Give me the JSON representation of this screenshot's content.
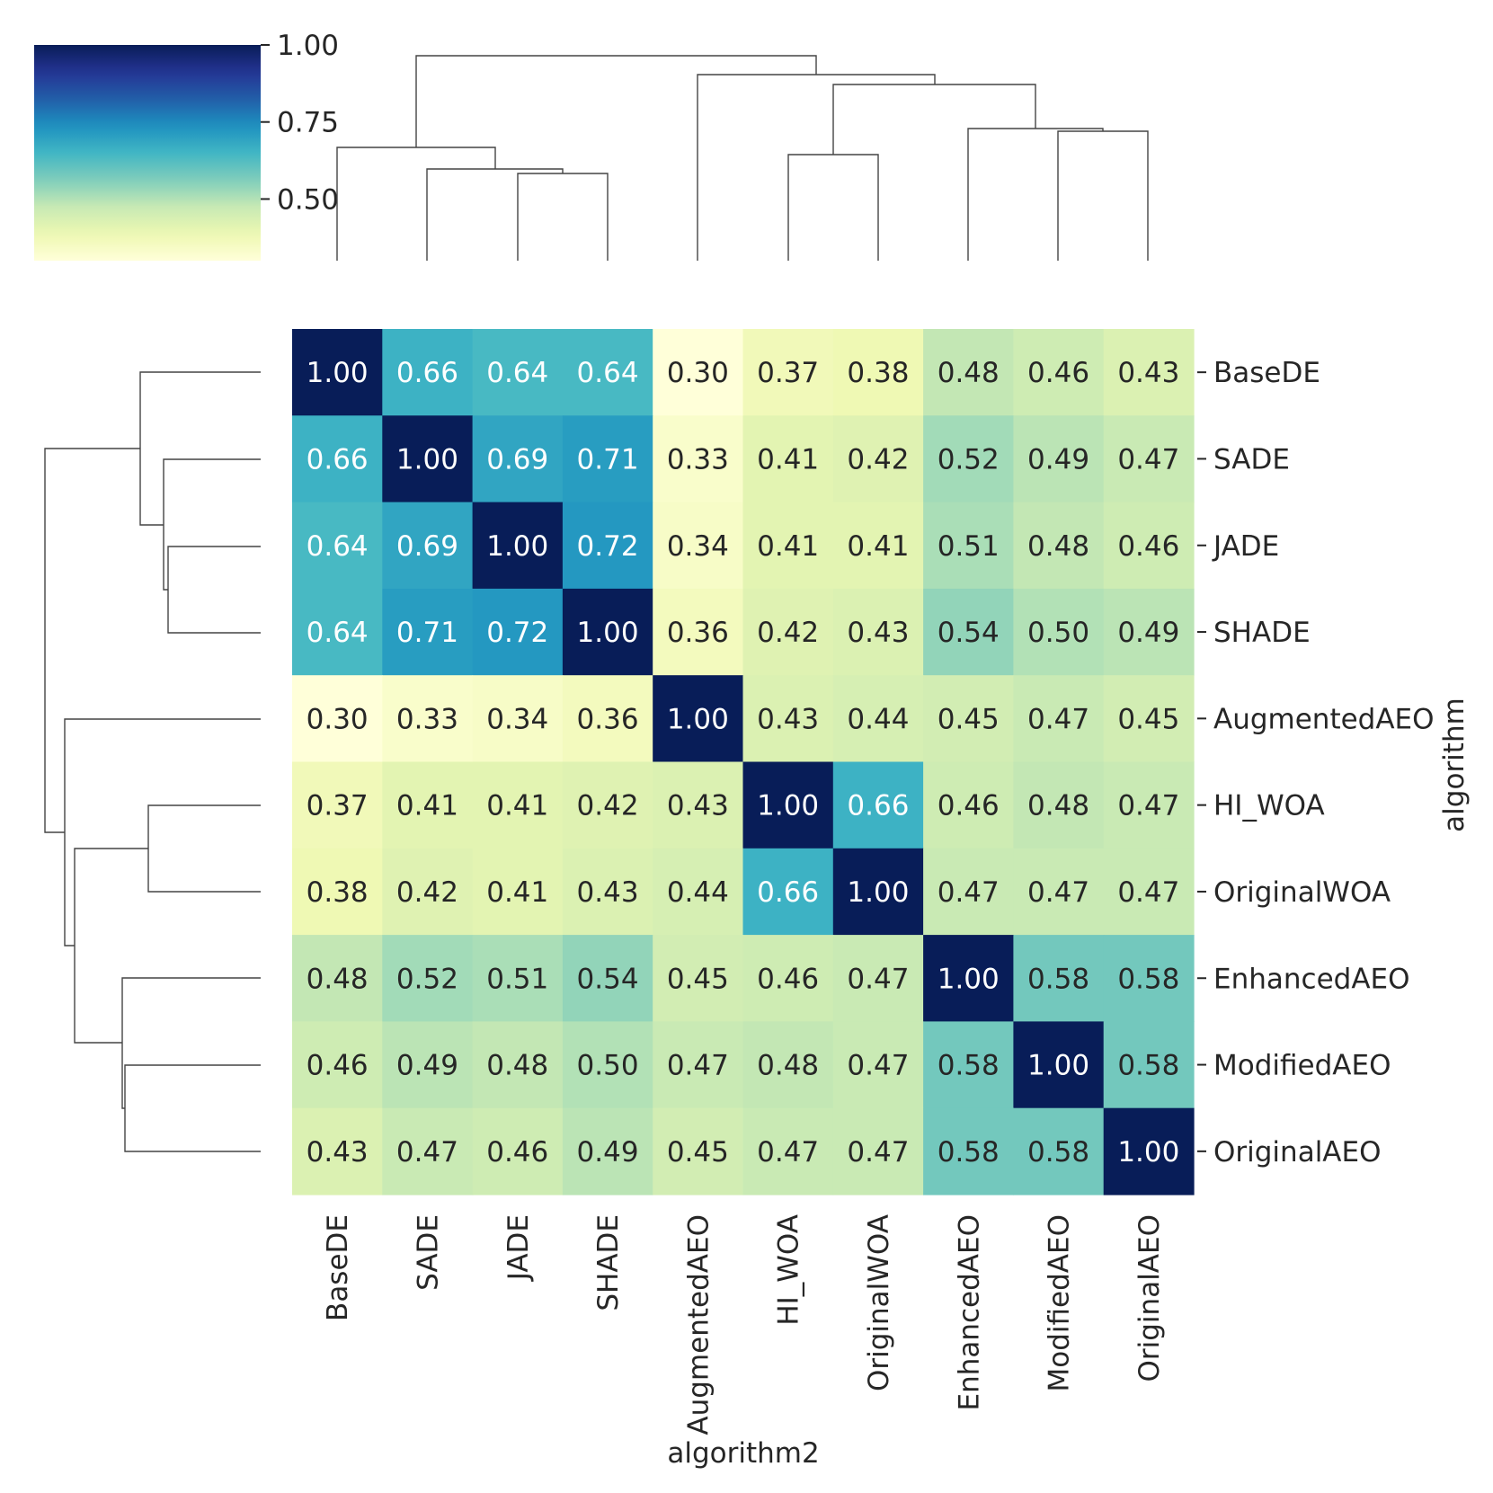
{
  "chart_data": {
    "type": "heatmap",
    "subtype": "clustermap",
    "categories": [
      "BaseDE",
      "SADE",
      "JADE",
      "SHADE",
      "AugmentedAEO",
      "HI_WOA",
      "OriginalWOA",
      "EnhancedAEO",
      "ModifiedAEO",
      "OriginalAEO"
    ],
    "values": [
      [
        1.0,
        0.66,
        0.64,
        0.64,
        0.3,
        0.37,
        0.38,
        0.48,
        0.46,
        0.43
      ],
      [
        0.66,
        1.0,
        0.69,
        0.71,
        0.33,
        0.41,
        0.42,
        0.52,
        0.49,
        0.47
      ],
      [
        0.64,
        0.69,
        1.0,
        0.72,
        0.34,
        0.41,
        0.41,
        0.51,
        0.48,
        0.46
      ],
      [
        0.64,
        0.71,
        0.72,
        1.0,
        0.36,
        0.42,
        0.43,
        0.54,
        0.5,
        0.49
      ],
      [
        0.3,
        0.33,
        0.34,
        0.36,
        1.0,
        0.43,
        0.44,
        0.45,
        0.47,
        0.45
      ],
      [
        0.37,
        0.41,
        0.41,
        0.42,
        0.43,
        1.0,
        0.66,
        0.46,
        0.48,
        0.47
      ],
      [
        0.38,
        0.42,
        0.41,
        0.43,
        0.44,
        0.66,
        1.0,
        0.47,
        0.47,
        0.47
      ],
      [
        0.48,
        0.52,
        0.51,
        0.54,
        0.45,
        0.46,
        0.47,
        1.0,
        0.58,
        0.58
      ],
      [
        0.46,
        0.49,
        0.48,
        0.5,
        0.47,
        0.48,
        0.47,
        0.58,
        1.0,
        0.58
      ],
      [
        0.43,
        0.47,
        0.46,
        0.49,
        0.45,
        0.47,
        0.47,
        0.58,
        0.58,
        1.0
      ]
    ],
    "xlabel": "algorithm2",
    "ylabel": "algorithm",
    "colormap": "YlGnBu",
    "colorbar": {
      "vmin": 0.3,
      "vmax": 1.0,
      "ticks": [
        0.5,
        0.75,
        1.0
      ],
      "tick_labels": [
        "0.50",
        "0.75",
        "1.00"
      ]
    }
  },
  "colors": {
    "annotation_dark": "#262626",
    "annotation_light": "#ffffff",
    "dendrogram": "#444444"
  }
}
